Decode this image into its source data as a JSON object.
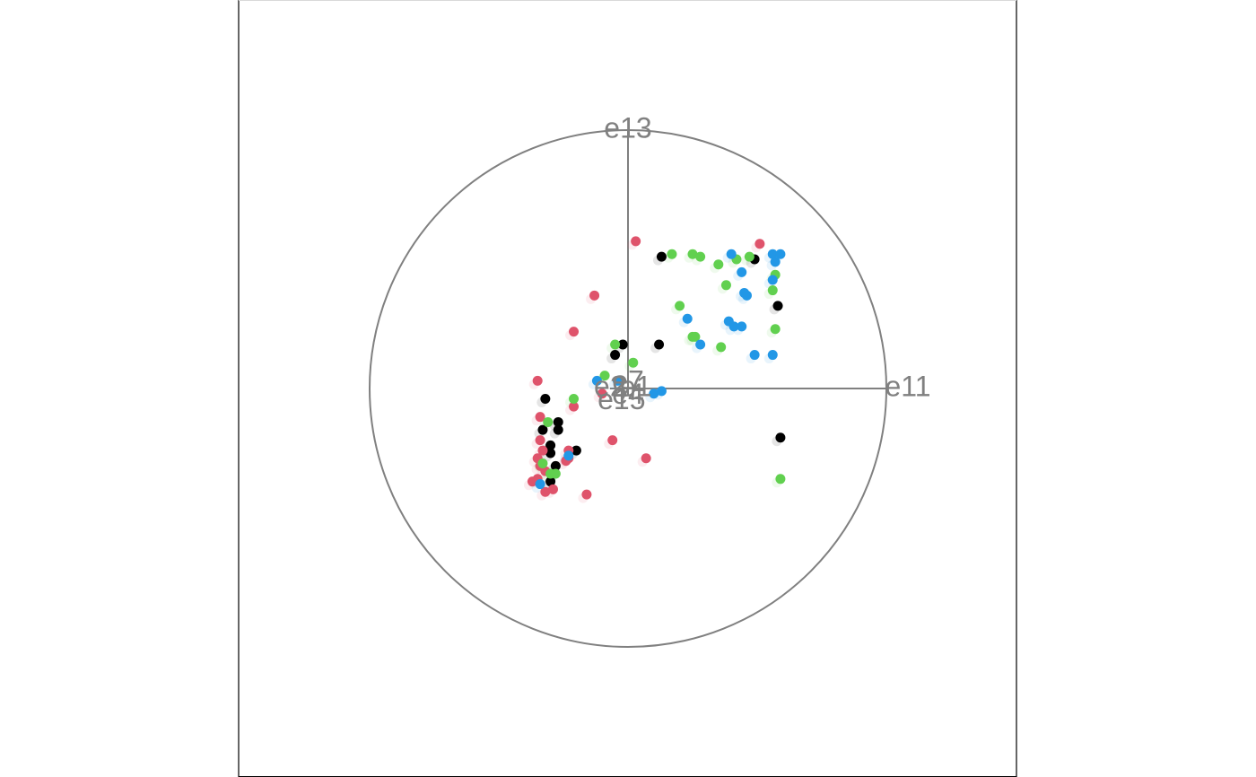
{
  "chart_data": {
    "type": "scatter",
    "projection": "radial-tour",
    "axes": [
      {
        "label": "e11",
        "direction": [
          1.0,
          0.0
        ]
      },
      {
        "label": "e13",
        "direction": [
          0.0,
          1.0
        ]
      },
      {
        "label": "e15",
        "direction": [
          -0.025,
          -0.05
        ]
      },
      {
        "label": "e2",
        "direction": [
          -0.07,
          0.0
        ]
      },
      {
        "label": "e7",
        "direction": [
          0.0,
          0.02
        ]
      },
      {
        "label": "e1",
        "direction": [
          0.03,
          0.0
        ]
      },
      {
        "label": "e4",
        "direction": [
          0.0,
          -0.03
        ]
      }
    ],
    "xlim": [
      -1.05,
      1.05
    ],
    "ylim": [
      -1.05,
      1.05
    ],
    "colors": {
      "black": "#000000",
      "red": "#DF536B",
      "green": "#61D04F",
      "blue": "#2297E6",
      "circle": "#808080",
      "frame": "#000000"
    },
    "series": [
      {
        "color": "#000000",
        "points": [
          [
            0.13,
            0.51
          ],
          [
            0.49,
            0.5
          ],
          [
            0.58,
            0.32
          ],
          [
            -0.02,
            0.17
          ],
          [
            -0.05,
            0.13
          ],
          [
            0.12,
            0.17
          ],
          [
            -0.32,
            -0.04
          ],
          [
            -0.27,
            -0.13
          ],
          [
            -0.33,
            -0.16
          ],
          [
            -0.27,
            -0.16
          ],
          [
            -0.3,
            -0.22
          ],
          [
            -0.2,
            -0.24
          ],
          [
            -0.3,
            -0.25
          ],
          [
            -0.28,
            -0.3
          ],
          [
            -0.3,
            -0.36
          ],
          [
            0.59,
            -0.19
          ]
        ]
      },
      {
        "color": "#DF536B",
        "points": [
          [
            0.03,
            0.57
          ],
          [
            0.51,
            0.56
          ],
          [
            -0.13,
            0.36
          ],
          [
            -0.21,
            0.22
          ],
          [
            -0.35,
            0.03
          ],
          [
            -0.21,
            -0.07
          ],
          [
            -0.1,
            -0.02
          ],
          [
            -0.34,
            -0.11
          ],
          [
            -0.34,
            -0.2
          ],
          [
            -0.35,
            -0.27
          ],
          [
            -0.23,
            -0.27
          ],
          [
            -0.24,
            -0.28
          ],
          [
            -0.06,
            -0.2
          ],
          [
            0.07,
            -0.27
          ],
          [
            -0.34,
            -0.3
          ],
          [
            -0.32,
            -0.32
          ],
          [
            -0.35,
            -0.35
          ],
          [
            -0.32,
            -0.4
          ],
          [
            -0.29,
            -0.39
          ],
          [
            -0.16,
            -0.41
          ],
          [
            -0.23,
            -0.24
          ],
          [
            -0.33,
            -0.24
          ],
          [
            -0.37,
            -0.36
          ]
        ]
      },
      {
        "color": "#61D04F",
        "points": [
          [
            0.17,
            0.52
          ],
          [
            0.25,
            0.52
          ],
          [
            0.28,
            0.51
          ],
          [
            0.35,
            0.48
          ],
          [
            0.42,
            0.5
          ],
          [
            0.47,
            0.51
          ],
          [
            0.38,
            0.4
          ],
          [
            0.57,
            0.44
          ],
          [
            0.56,
            0.38
          ],
          [
            0.2,
            0.32
          ],
          [
            0.25,
            0.2
          ],
          [
            0.26,
            0.2
          ],
          [
            0.36,
            0.16
          ],
          [
            0.57,
            0.23
          ],
          [
            -0.05,
            0.17
          ],
          [
            0.02,
            0.1
          ],
          [
            -0.09,
            0.05
          ],
          [
            -0.21,
            -0.04
          ],
          [
            -0.31,
            -0.13
          ],
          [
            -0.33,
            -0.29
          ],
          [
            -0.3,
            -0.33
          ],
          [
            -0.28,
            -0.33
          ],
          [
            0.59,
            -0.35
          ]
        ]
      },
      {
        "color": "#2297E6",
        "points": [
          [
            0.4,
            0.52
          ],
          [
            0.56,
            0.52
          ],
          [
            0.59,
            0.52
          ],
          [
            0.57,
            0.49
          ],
          [
            0.44,
            0.45
          ],
          [
            0.45,
            0.37
          ],
          [
            0.46,
            0.36
          ],
          [
            0.56,
            0.42
          ],
          [
            0.23,
            0.27
          ],
          [
            0.39,
            0.26
          ],
          [
            0.41,
            0.24
          ],
          [
            0.44,
            0.24
          ],
          [
            0.28,
            0.17
          ],
          [
            0.49,
            0.13
          ],
          [
            0.56,
            0.13
          ],
          [
            -0.12,
            0.03
          ],
          [
            -0.04,
            0.03
          ],
          [
            0.1,
            -0.02
          ],
          [
            0.13,
            -0.01
          ],
          [
            -0.23,
            -0.26
          ],
          [
            -0.34,
            -0.37
          ]
        ]
      }
    ]
  }
}
